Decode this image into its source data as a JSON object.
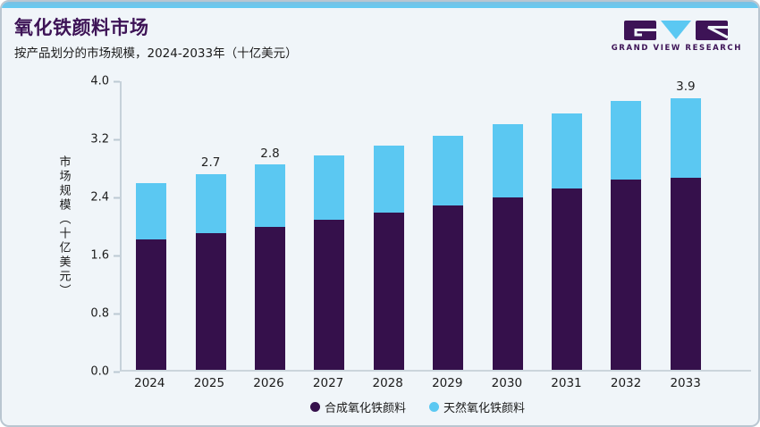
{
  "header": {
    "title": "氧化铁颜料市场",
    "subtitle": "按产品划分的市场规模，2024-2033年（十亿美元）"
  },
  "logo": {
    "text": "GRAND VIEW RESEARCH"
  },
  "colors": {
    "accent_blue": "#5BC8F2",
    "dark_purple": "#35104B",
    "title_purple": "#3D1356",
    "card_bg": "#F0F5F9",
    "card_border": "#B9C6D1",
    "axis_line": "#CBD5DC",
    "topbar_blue": "#63CBF3"
  },
  "chart_data": {
    "type": "bar",
    "stacked": true,
    "title": "氧化铁颜料市场",
    "subtitle": "按产品划分的市场规模，2024-2033年（十亿美元）",
    "categories": [
      "2024",
      "2025",
      "2026",
      "2027",
      "2028",
      "2029",
      "2030",
      "2031",
      "2032",
      "2033"
    ],
    "series": [
      {
        "name": "合成氧化铁颜料",
        "color": "#35104B",
        "values": [
          1.8,
          1.88,
          1.97,
          2.07,
          2.17,
          2.27,
          2.38,
          2.5,
          2.62,
          2.74
        ]
      },
      {
        "name": "天然氧化铁颜料",
        "color": "#5BC8F2",
        "values": [
          0.77,
          0.82,
          0.86,
          0.89,
          0.92,
          0.95,
          1.0,
          1.03,
          1.08,
          1.14
        ]
      }
    ],
    "totals": [
      2.57,
      2.7,
      2.83,
      2.96,
      3.09,
      3.22,
      3.38,
      3.53,
      3.7,
      3.88
    ],
    "value_labels": [
      "",
      "2.7",
      "2.8",
      "",
      "",
      "",
      "",
      "",
      "",
      "3.9"
    ],
    "xlabel": "",
    "ylabel": "市场规模（十亿美元）",
    "yticks": [
      "0.0",
      "0.8",
      "1.6",
      "2.4",
      "3.2",
      "4.0"
    ],
    "ylim": [
      0.0,
      4.0
    ],
    "grid": false,
    "legend_position": "bottom"
  }
}
